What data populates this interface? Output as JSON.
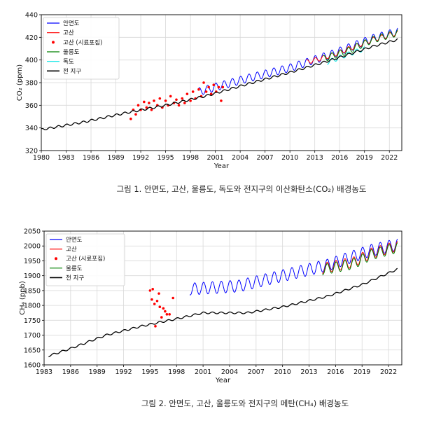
{
  "chart_data": [
    {
      "type": "line",
      "caption": "그림 1. 안면도, 고산, 울릉도, 독도와 전지구의 이산화탄소(CO₂) 배경농도",
      "xlabel": "Year",
      "ylabel": "CO₂ (ppm)",
      "xlim": [
        1980,
        2023.5
      ],
      "ylim": [
        320,
        440
      ],
      "xticks": [
        1980,
        1983,
        1986,
        1989,
        1992,
        1995,
        1998,
        2001,
        2004,
        2007,
        2010,
        2013,
        2016,
        2019,
        2022
      ],
      "yticks": [
        320,
        340,
        360,
        380,
        400,
        420,
        440
      ],
      "grid": true,
      "legend_position": "top-left",
      "series": [
        {
          "name": "안면도",
          "color": "#0000ff",
          "style": "line",
          "x_start": 1999.0,
          "x_end": 2023.0,
          "trend": [
            [
              1999,
              372
            ],
            [
              2005,
              384
            ],
            [
              2010,
              393
            ],
            [
              2015,
              405
            ],
            [
              2020,
              419
            ],
            [
              2023,
              425
            ]
          ],
          "amplitude": 7
        },
        {
          "name": "고산",
          "color": "#ff0000",
          "style": "line",
          "x_start": 2012.0,
          "x_end": 2023.0,
          "trend": [
            [
              2012,
              398
            ],
            [
              2015,
              404
            ],
            [
              2020,
              418
            ],
            [
              2023,
              424
            ]
          ],
          "amplitude": 4
        },
        {
          "name": "고산 (시료포집)",
          "color": "#ff0000",
          "style": "points",
          "points": [
            [
              1990.8,
              348
            ],
            [
              1991.1,
              356
            ],
            [
              1991.4,
              352
            ],
            [
              1991.7,
              360
            ],
            [
              1992.0,
              356
            ],
            [
              1992.4,
              363
            ],
            [
              1992.7,
              358
            ],
            [
              1993.0,
              362
            ],
            [
              1993.3,
              356
            ],
            [
              1993.6,
              364
            ],
            [
              1994.0,
              360
            ],
            [
              1994.3,
              366
            ],
            [
              1994.6,
              358
            ],
            [
              1995.0,
              364
            ],
            [
              1995.3,
              360
            ],
            [
              1995.6,
              368
            ],
            [
              1996.0,
              362
            ],
            [
              1996.3,
              365
            ],
            [
              1996.6,
              360
            ],
            [
              1997.0,
              366
            ],
            [
              1997.3,
              362
            ],
            [
              1997.6,
              370
            ],
            [
              1998.0,
              364
            ],
            [
              1998.3,
              372
            ],
            [
              1998.6,
              366
            ],
            [
              1999.0,
              374
            ],
            [
              1999.3,
              368
            ],
            [
              1999.6,
              380
            ],
            [
              1999.9,
              372
            ],
            [
              2000.2,
              376
            ],
            [
              2000.5,
              370
            ],
            [
              2000.8,
              378
            ],
            [
              2001.1,
              372
            ],
            [
              2001.4,
              376
            ],
            [
              2001.7,
              364
            ],
            [
              2001.9,
              376
            ]
          ]
        },
        {
          "name": "울릉도",
          "color": "#008000",
          "style": "line",
          "x_start": 2014.0,
          "x_end": 2023.0,
          "trend": [
            [
              2014,
              401
            ],
            [
              2017,
              408
            ],
            [
              2020,
              418
            ],
            [
              2023,
              424
            ]
          ],
          "amplitude": 6
        },
        {
          "name": "독도",
          "color": "#00e5e5",
          "style": "line",
          "x_start": 2014.5,
          "x_end": 2019.0,
          "trend": [
            [
              2014.5,
              398
            ],
            [
              2017,
              405
            ],
            [
              2019,
              410
            ]
          ],
          "amplitude": 4
        },
        {
          "name": "전 지구",
          "color": "#000000",
          "style": "line",
          "x_start": 1980.0,
          "x_end": 2023.0,
          "trend": [
            [
              1980,
              338.5
            ],
            [
              1985,
              345
            ],
            [
              1990,
              353
            ],
            [
              1995,
              360
            ],
            [
              2000,
              368.5
            ],
            [
              2005,
              379
            ],
            [
              2010,
              389
            ],
            [
              2015,
              400
            ],
            [
              2020,
              412
            ],
            [
              2023,
              418
            ]
          ],
          "amplitude": 1.8
        }
      ]
    },
    {
      "type": "line",
      "caption": "그림 2. 안면도, 고산, 울릉도와 전지구의 메탄(CH₄) 배경농도",
      "xlabel": "Year",
      "ylabel": "CH₄ (ppb)",
      "xlim": [
        1983,
        2023.5
      ],
      "ylim": [
        1600,
        2050
      ],
      "xticks": [
        1983,
        1986,
        1989,
        1992,
        1995,
        1998,
        2001,
        2004,
        2007,
        2010,
        2013,
        2016,
        2019,
        2022
      ],
      "yticks": [
        1600,
        1650,
        1700,
        1750,
        1800,
        1850,
        1900,
        1950,
        2000,
        2050
      ],
      "grid": true,
      "legend_position": "top-left",
      "series": [
        {
          "name": "안면도",
          "color": "#0000ff",
          "style": "line",
          "x_start": 1999.5,
          "x_end": 2023.0,
          "trend": [
            [
              1999.5,
              1855
            ],
            [
              2005,
              1865
            ],
            [
              2010,
              1900
            ],
            [
              2015,
              1935
            ],
            [
              2020,
              1985
            ],
            [
              2023,
              2005
            ]
          ],
          "amplitude": 40
        },
        {
          "name": "고산",
          "color": "#ff0000",
          "style": "line",
          "x_start": 2014.5,
          "x_end": 2023.0,
          "trend": [
            [
              2014.5,
              1925
            ],
            [
              2018,
              1945
            ],
            [
              2020,
              1975
            ],
            [
              2023,
              2000
            ]
          ],
          "amplitude": 35
        },
        {
          "name": "고산 (시료포집)",
          "color": "#ff0000",
          "style": "points",
          "points": [
            [
              1995.0,
              1850
            ],
            [
              1995.2,
              1820
            ],
            [
              1995.3,
              1855
            ],
            [
              1995.5,
              1805
            ],
            [
              1995.6,
              1730
            ],
            [
              1995.8,
              1815
            ],
            [
              1996.0,
              1840
            ],
            [
              1996.1,
              1795
            ],
            [
              1996.3,
              1760
            ],
            [
              1996.5,
              1790
            ],
            [
              1996.7,
              1780
            ],
            [
              1996.9,
              1770
            ],
            [
              1997.2,
              1770
            ],
            [
              1997.6,
              1825
            ]
          ]
        },
        {
          "name": "울릉도",
          "color": "#008000",
          "style": "line",
          "x_start": 2014.5,
          "x_end": 2023.0,
          "trend": [
            [
              2014.5,
              1920
            ],
            [
              2018,
              1940
            ],
            [
              2020,
              1970
            ],
            [
              2023,
              1995
            ]
          ],
          "amplitude": 35
        },
        {
          "name": "전 지구",
          "color": "#000000",
          "style": "line",
          "x_start": 1983.5,
          "x_end": 2023.0,
          "trend": [
            [
              1983.5,
              1630
            ],
            [
              1986,
              1655
            ],
            [
              1990,
              1700
            ],
            [
              1994,
              1730
            ],
            [
              1998,
              1755
            ],
            [
              2001,
              1775
            ],
            [
              2006,
              1775
            ],
            [
              2010,
              1795
            ],
            [
              2015,
              1830
            ],
            [
              2019,
              1870
            ],
            [
              2023,
              1922
            ]
          ],
          "amplitude": 6
        }
      ]
    }
  ]
}
